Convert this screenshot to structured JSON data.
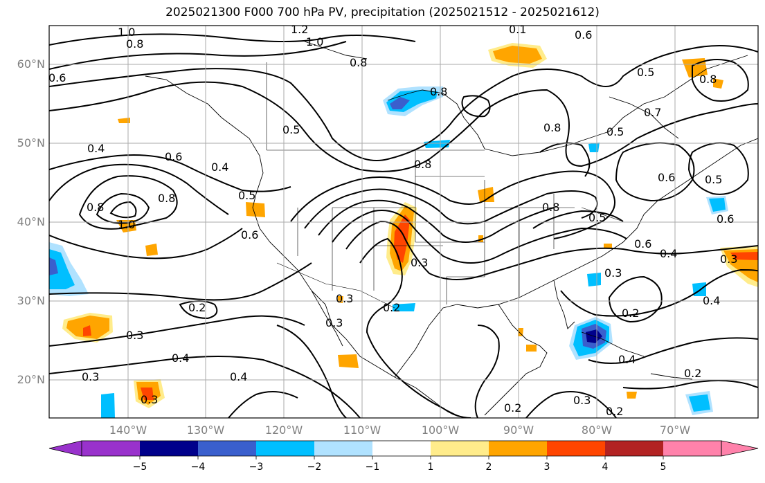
{
  "title": "2025021300 F000 700 hPa PV, precipitation (2025021512 - 2025021612)",
  "map": {
    "projection": "PlateCarree",
    "lon_range": [
      -150,
      -57
    ],
    "lat_range": [
      15,
      65
    ],
    "lat_labels": [
      "60°N",
      "50°N",
      "40°N",
      "30°N",
      "20°N"
    ],
    "lon_labels": [
      "140°W",
      "130°W",
      "120°W",
      "110°W",
      "100°W",
      "90°W",
      "80°W",
      "70°W"
    ],
    "contour_labels": [
      "1.0",
      "0.8",
      "1.2",
      "1.0",
      "0.8",
      "0.4",
      "0.6",
      "0.8",
      "0.6",
      "1.0",
      "0.8",
      "0.5",
      "0.4",
      "0.5",
      "0.6",
      "0.3",
      "0.3",
      "0.2",
      "0.2",
      "0.3",
      "0.4",
      "0.4",
      "0.3",
      "0.3",
      "0.2",
      "0.8",
      "0.5",
      "0.7",
      "0.8",
      "0.6",
      "0.5",
      "0.8",
      "0.5",
      "0.6",
      "0.4",
      "0.3",
      "0.2",
      "0.4",
      "0.4",
      "0.2",
      "0.3",
      "0.1",
      "0.6",
      "0.6",
      "0.3",
      "0.8",
      "0.8",
      "0.2",
      "0.3",
      "0.5"
    ]
  },
  "colorbar": {
    "ticks": [
      "−5",
      "−4",
      "−3",
      "−2",
      "−1",
      "1",
      "2",
      "3",
      "4",
      "5"
    ],
    "colors": [
      "#9932cc",
      "#00008b",
      "#3a5fcd",
      "#00bfff",
      "#b0e2ff",
      "#ffffff",
      "#ffec8b",
      "#ffa500",
      "#ff4500",
      "#b22222",
      "#ff82ab"
    ]
  }
}
